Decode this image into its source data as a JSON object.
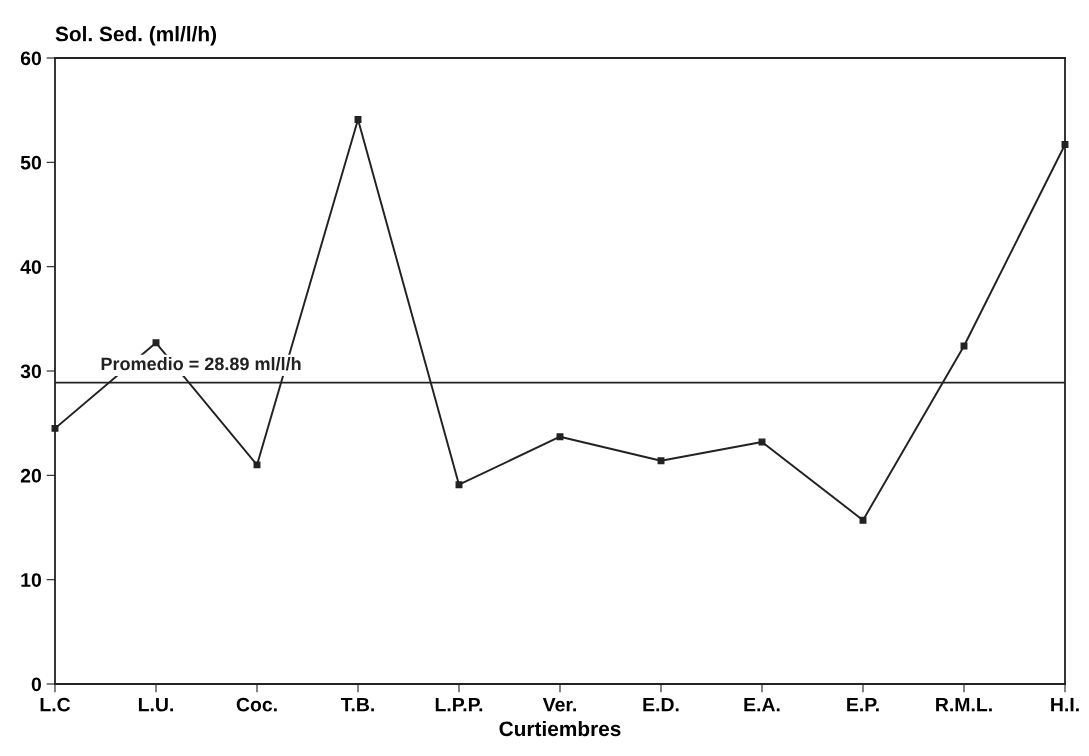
{
  "chart_data": {
    "type": "line",
    "ylabel": "Sol. Sed. (ml/l/h)",
    "xlabel": "Curtiembres",
    "categories": [
      "L.C",
      "L.U.",
      "Coc.",
      "T.B.",
      "L.P.P.",
      "Ver.",
      "E.D.",
      "E.A.",
      "E.P.",
      "R.M.L.",
      "H.I."
    ],
    "series": [
      {
        "color": "#222222",
        "values": [
          24.5,
          32.7,
          21.0,
          54.1,
          19.1,
          23.7,
          21.4,
          23.2,
          15.7,
          32.4,
          51.7
        ]
      }
    ],
    "ylim": [
      0,
      60
    ],
    "yticks": [
      0,
      10,
      20,
      30,
      40,
      50,
      60
    ],
    "ref_lines": [
      {
        "axis": "y",
        "value": 28.89,
        "label": "Promedio = 28.89 ml/l/h",
        "color": "#222222"
      }
    ],
    "marker": "square",
    "line_style": "solid",
    "grid": false,
    "legend": false
  }
}
